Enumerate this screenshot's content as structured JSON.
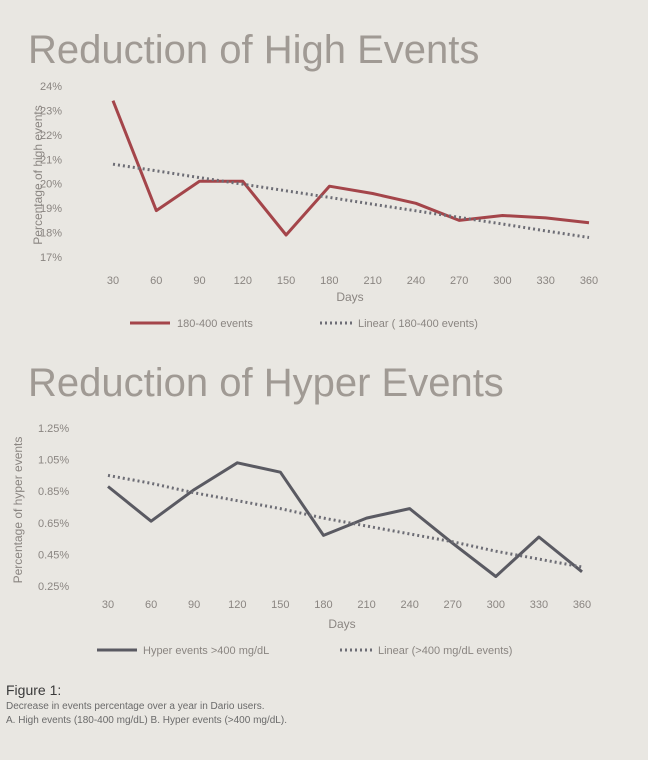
{
  "colors": {
    "background": "#e9e7e2",
    "high_line": "#a4454a",
    "hyper_line": "#5a5a62",
    "trend": "#6d6d75",
    "text": "#8a8581"
  },
  "chart_data": [
    {
      "type": "line",
      "title": "Reduction of High Events",
      "xlabel": "Days",
      "ylabel": "Percentage of high events",
      "x": [
        30,
        60,
        90,
        120,
        150,
        180,
        210,
        240,
        270,
        300,
        330,
        360
      ],
      "ytick_labels": [
        "17%",
        "18%",
        "19%",
        "20%",
        "21%",
        "22%",
        "23%",
        "24%"
      ],
      "ylim": [
        17,
        24
      ],
      "grid": false,
      "legend_position": "bottom",
      "series": [
        {
          "name": "180-400 events",
          "style": "solid",
          "values": [
            23.4,
            18.9,
            20.1,
            20.1,
            17.9,
            19.9,
            19.6,
            19.2,
            18.5,
            18.7,
            18.6,
            18.4
          ]
        },
        {
          "name": "Linear ( 180-400 events)",
          "style": "dotted",
          "values": [
            20.8,
            20.53,
            20.25,
            19.98,
            19.71,
            19.44,
            19.16,
            18.89,
            18.62,
            18.35,
            18.07,
            17.8
          ]
        }
      ]
    },
    {
      "type": "line",
      "title": "Reduction of Hyper Events",
      "xlabel": "Days",
      "ylabel": "Percentage of hyper events",
      "x": [
        30,
        60,
        90,
        120,
        150,
        180,
        210,
        240,
        270,
        300,
        330,
        360
      ],
      "ytick_labels": [
        "0.25%",
        "0.45%",
        "0.65%",
        "0.85%",
        "1.05%",
        "1.25%"
      ],
      "ylim": [
        0.25,
        1.25
      ],
      "grid": false,
      "legend_position": "bottom",
      "series": [
        {
          "name": "Hyper events >400 mg/dL",
          "style": "solid",
          "values": [
            0.88,
            0.66,
            0.86,
            1.03,
            0.97,
            0.57,
            0.68,
            0.74,
            0.52,
            0.31,
            0.56,
            0.34
          ]
        },
        {
          "name": "Linear (>400 mg/dL events)",
          "style": "dotted",
          "values": [
            0.95,
            0.9,
            0.84,
            0.79,
            0.74,
            0.68,
            0.63,
            0.58,
            0.53,
            0.47,
            0.42,
            0.37
          ]
        }
      ]
    }
  ],
  "caption": {
    "title": "Figure 1:",
    "line1": "Decrease in events percentage over a year in Dario users.",
    "line2": "A. High events (180-400 mg/dL) B. Hyper events (>400 mg/dL)."
  }
}
